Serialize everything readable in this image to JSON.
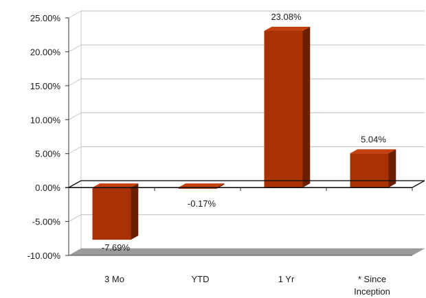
{
  "chart_data": {
    "type": "bar",
    "style": "3d-column",
    "categories": [
      "3 Mo",
      "YTD",
      "1 Yr",
      "* Since Inception"
    ],
    "category_lines": [
      [
        "3 Mo"
      ],
      [
        "YTD"
      ],
      [
        "1 Yr"
      ],
      [
        "* Since",
        "Inception"
      ]
    ],
    "values": [
      -7.69,
      -0.17,
      23.08,
      5.04
    ],
    "data_labels": [
      "-7.69%",
      "-0.17%",
      "23.08%",
      "5.04%"
    ],
    "ylim": [
      -10,
      25
    ],
    "yticks": [
      25,
      20,
      15,
      10,
      5,
      0,
      -5,
      -10
    ],
    "ytick_labels": [
      "25.00%",
      "20.00%",
      "15.00%",
      "10.00%",
      "5.00%",
      "0.00%",
      "-5.00%",
      "-10.00%"
    ],
    "grid": true,
    "legend": "none",
    "title": "",
    "xlabel": "",
    "ylabel": "",
    "colors": {
      "bar_front": "#a83206",
      "bar_side": "#6b1f02",
      "bar_top": "#c2410c",
      "floor": "#9a9a9a",
      "grid": "#c8c8c8"
    }
  }
}
